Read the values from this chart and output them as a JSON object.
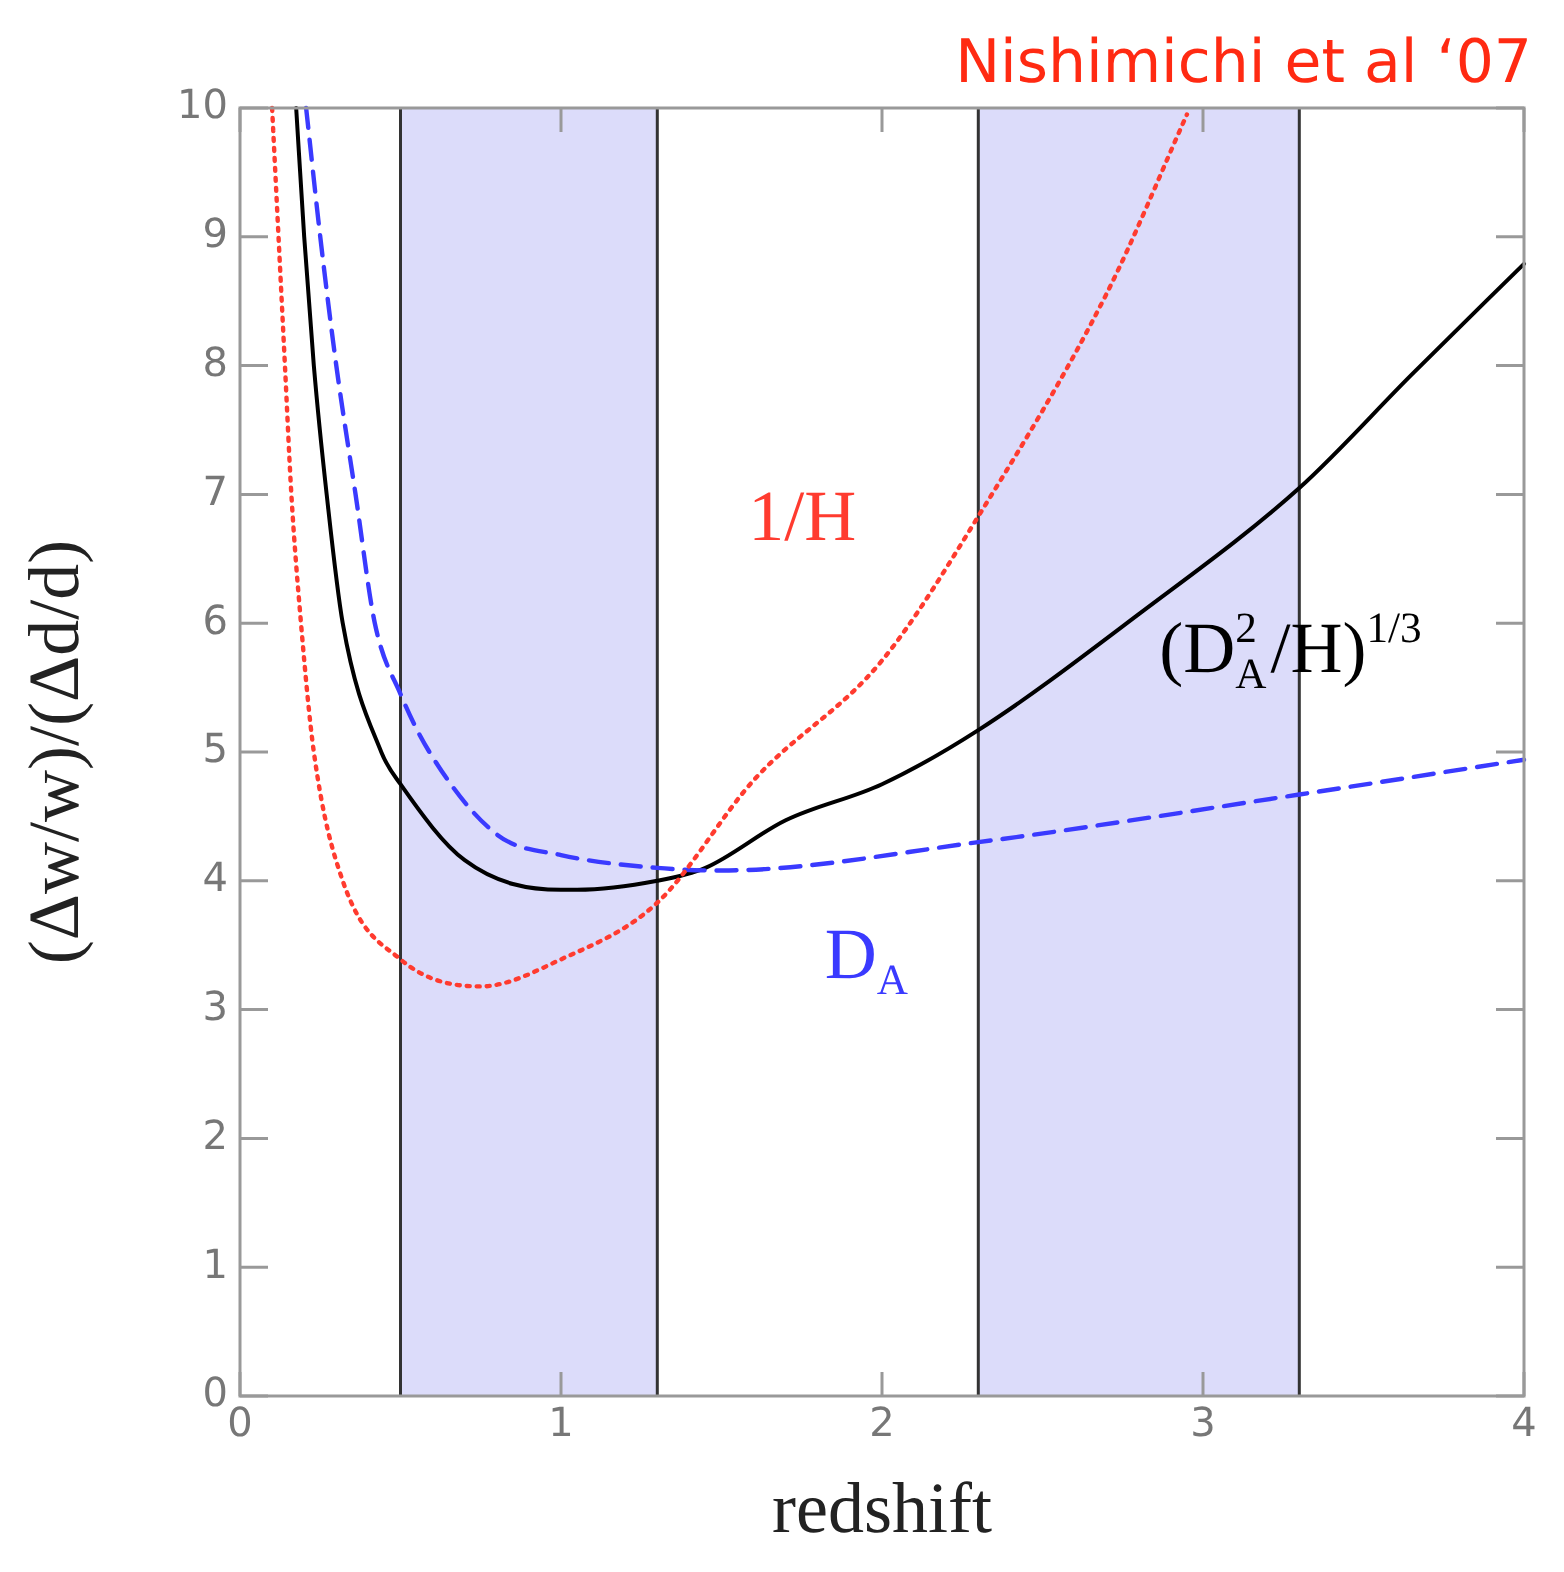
{
  "chart_data": {
    "type": "line",
    "xlabel": "redshift",
    "ylabel": "(Δw/w)/(Δd/d)",
    "xlim": [
      0,
      4
    ],
    "xticks": [
      0,
      1,
      2,
      3,
      4
    ],
    "ylim": [
      0,
      10
    ],
    "yticks": [
      0,
      1,
      2,
      3,
      4,
      5,
      6,
      7,
      8,
      9,
      10
    ],
    "grid": false,
    "legend": false,
    "marker": "none",
    "series": [
      {
        "name": "1/H",
        "color": "#ff3b2f",
        "line_style": "dotted",
        "x": [
          0.1,
          0.12,
          0.14,
          0.16,
          0.19,
          0.23,
          0.32,
          0.5,
          0.75,
          1.0,
          1.3,
          1.6,
          2.0,
          2.3,
          2.7,
          2.95
        ],
        "values": [
          10,
          9,
          8,
          7,
          6,
          5,
          4,
          3.39,
          3.18,
          3.39,
          3.83,
          4.78,
          5.71,
          6.83,
          8.56,
          9.95
        ]
      },
      {
        "name": "D$_{A}$",
        "color": "#3a3aff",
        "line_style": "dashed",
        "x": [
          0.206,
          0.25,
          0.3,
          0.36,
          0.42,
          0.5,
          0.59,
          0.8,
          1.0,
          1.3,
          1.5,
          2.3,
          3.3,
          4.0
        ],
        "values": [
          10,
          9,
          8,
          7,
          6,
          5.45,
          5,
          4.36,
          4.2,
          4.1,
          4.08,
          4.3,
          4.67,
          4.94
        ]
      },
      {
        "name": "(D$_{A}$$^{2}$/H)$^{1/3}$",
        "color": "#000000",
        "line_style": "solid",
        "x": [
          0.175,
          0.2,
          0.23,
          0.27,
          0.32,
          0.44,
          0.5,
          0.7,
          1.0,
          1.05,
          1.3,
          1.45,
          1.7,
          2.0,
          2.3,
          2.8,
          3.3,
          3.65,
          4.0
        ],
        "values": [
          10,
          9,
          8,
          7,
          6,
          5,
          4.75,
          4.16,
          3.93,
          3.93,
          4.0,
          4.1,
          4.47,
          4.75,
          5.17,
          6.07,
          7.05,
          7.93,
          8.79
        ]
      }
    ],
    "bands": [
      {
        "axis": "x",
        "from": 0.5,
        "to": 1.3,
        "color": "#dcdcfa"
      },
      {
        "axis": "x",
        "from": 2.3,
        "to": 3.3,
        "color": "#dcdcfa"
      }
    ],
    "annotations": [
      "Nishimichi et al ‘07"
    ]
  }
}
